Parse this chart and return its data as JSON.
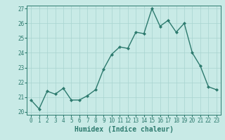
{
  "x": [
    0,
    1,
    2,
    3,
    4,
    5,
    6,
    7,
    8,
    9,
    10,
    11,
    12,
    13,
    14,
    15,
    16,
    17,
    18,
    19,
    20,
    21,
    22,
    23
  ],
  "y": [
    20.8,
    20.2,
    21.4,
    21.2,
    21.6,
    20.8,
    20.8,
    21.1,
    21.5,
    22.9,
    23.9,
    24.4,
    24.3,
    25.4,
    25.3,
    27.0,
    25.8,
    26.2,
    25.4,
    26.0,
    24.0,
    23.1,
    21.7,
    21.5
  ],
  "line_color": "#2d7a6e",
  "marker": "D",
  "marker_size": 2.0,
  "line_width": 1.0,
  "bg_color": "#c8eae6",
  "grid_color": "#a8d4d0",
  "xlabel": "Humidex (Indice chaleur)",
  "ylim": [
    19.8,
    27.2
  ],
  "xlim": [
    -0.5,
    23.5
  ],
  "yticks": [
    20,
    21,
    22,
    23,
    24,
    25,
    26,
    27
  ],
  "xticks": [
    0,
    1,
    2,
    3,
    4,
    5,
    6,
    7,
    8,
    9,
    10,
    11,
    12,
    13,
    14,
    15,
    16,
    17,
    18,
    19,
    20,
    21,
    22,
    23
  ],
  "tick_fontsize": 5.5,
  "xlabel_fontsize": 7.0
}
